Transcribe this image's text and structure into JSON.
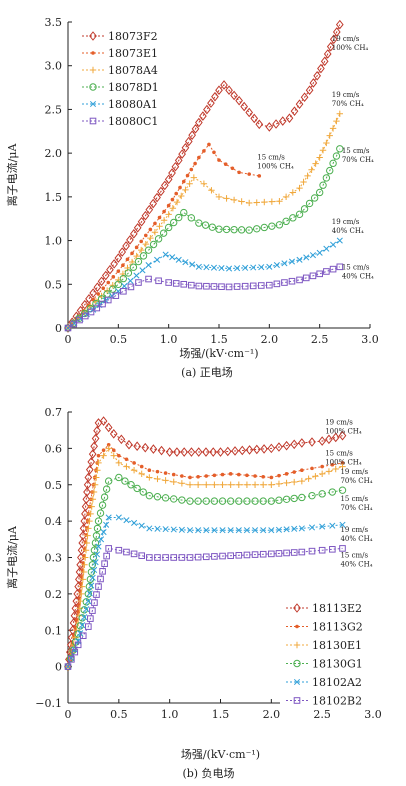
{
  "chart_data": [
    {
      "type": "line",
      "caption": "(a) 正电场",
      "xlabel": "场强/(kV·cm⁻¹)",
      "ylabel": "离子电流/μA",
      "xlim": [
        0,
        3.0
      ],
      "ylim": [
        0,
        3.5
      ],
      "xticks": [
        "0",
        "0.5",
        "1.0",
        "1.5",
        "2.0",
        "2.5",
        "3.0"
      ],
      "yticks": [
        "0",
        "0.5",
        "1.0",
        "1.5",
        "2.0",
        "2.5",
        "3.0",
        "3.5"
      ],
      "legend_position": "top-left",
      "series": [
        {
          "name": "18073F2",
          "color": "#c0392b",
          "marker": "diamond",
          "dash": "2,2",
          "x": [
            0,
            0.5,
            1.0,
            1.3,
            1.5,
            1.55,
            1.7,
            1.9,
            2.0,
            2.2,
            2.4,
            2.55,
            2.7
          ],
          "y": [
            0,
            0.8,
            1.7,
            2.35,
            2.72,
            2.78,
            2.6,
            2.33,
            2.3,
            2.4,
            2.72,
            3.05,
            3.47
          ]
        },
        {
          "name": "18073E1",
          "color": "#e45e2a",
          "marker": "dot",
          "dash": "2,2",
          "x": [
            0,
            0.5,
            1.0,
            1.3,
            1.4,
            1.5,
            1.7,
            1.9
          ],
          "y": [
            0,
            0.65,
            1.4,
            1.95,
            2.1,
            1.92,
            1.78,
            1.74
          ]
        },
        {
          "name": "18078A4",
          "color": "#f0a83c",
          "marker": "plus",
          "dash": "2,2",
          "x": [
            0,
            0.5,
            1.0,
            1.25,
            1.35,
            1.5,
            1.8,
            2.1,
            2.3,
            2.5,
            2.7
          ],
          "y": [
            0,
            0.55,
            1.3,
            1.72,
            1.65,
            1.5,
            1.43,
            1.45,
            1.6,
            1.95,
            2.45
          ]
        },
        {
          "name": "18078D1",
          "color": "#4caf50",
          "marker": "circle",
          "dash": "2,2",
          "x": [
            0,
            0.5,
            1.0,
            1.15,
            1.3,
            1.5,
            1.8,
            2.1,
            2.3,
            2.5,
            2.7
          ],
          "y": [
            0,
            0.5,
            1.15,
            1.32,
            1.2,
            1.13,
            1.12,
            1.18,
            1.3,
            1.55,
            2.05
          ]
        },
        {
          "name": "18080A1",
          "color": "#2f9fd8",
          "marker": "cross",
          "dash": "2,2",
          "x": [
            0,
            0.5,
            0.8,
            0.97,
            1.1,
            1.3,
            1.6,
            2.0,
            2.3,
            2.5,
            2.7
          ],
          "y": [
            0,
            0.42,
            0.72,
            0.84,
            0.78,
            0.7,
            0.68,
            0.7,
            0.78,
            0.86,
            1.0
          ]
        },
        {
          "name": "18080C1",
          "color": "#7e57c2",
          "marker": "square",
          "dash": "2,2",
          "x": [
            0,
            0.4,
            0.7,
            0.8,
            1.0,
            1.3,
            1.6,
            2.0,
            2.3,
            2.5,
            2.7
          ],
          "y": [
            0,
            0.32,
            0.52,
            0.56,
            0.52,
            0.48,
            0.47,
            0.49,
            0.55,
            0.62,
            0.7
          ]
        }
      ],
      "annotations": [
        {
          "lines": [
            "19 cm/s",
            "100% CH₄"
          ],
          "x": 2.62,
          "y": 3.28
        },
        {
          "lines": [
            "15 cm/s",
            "100% CH₄"
          ],
          "x": 1.88,
          "y": 1.93
        },
        {
          "lines": [
            "19 cm/s",
            "70% CH₄"
          ],
          "x": 2.62,
          "y": 2.64
        },
        {
          "lines": [
            "15 cm/s",
            "70% CH₄"
          ],
          "x": 2.72,
          "y": 2.0
        },
        {
          "lines": [
            "19 cm/s",
            "40% CH₄"
          ],
          "x": 2.62,
          "y": 1.19
        },
        {
          "lines": [
            "15 cm/s",
            "40% CH₄"
          ],
          "x": 2.72,
          "y": 0.67
        }
      ]
    },
    {
      "type": "line",
      "caption": "(b) 负电场",
      "xlabel": "场强/(kV·cm⁻¹)",
      "ylabel": "离子电流/μA",
      "xlim": [
        0,
        3.0
      ],
      "ylim": [
        -0.1,
        0.7
      ],
      "xticks": [
        "0",
        "0.5",
        "1.0",
        "1.5",
        "2.0",
        "2.5",
        "3.0"
      ],
      "yticks": [
        "−0.1",
        "0",
        "0.1",
        "0.2",
        "0.3",
        "0.4",
        "0.5",
        "0.6",
        "0.7"
      ],
      "legend_position": "bottom-right",
      "series": [
        {
          "name": "18113E2",
          "color": "#c0392b",
          "marker": "diamond",
          "dash": "2,2",
          "x": [
            0,
            0.1,
            0.2,
            0.3,
            0.35,
            0.45,
            0.6,
            1.0,
            1.5,
            2.0,
            2.3,
            2.5,
            2.7
          ],
          "y": [
            0,
            0.22,
            0.52,
            0.67,
            0.675,
            0.64,
            0.61,
            0.59,
            0.59,
            0.6,
            0.615,
            0.62,
            0.635
          ]
        },
        {
          "name": "18113G2",
          "color": "#e45e2a",
          "marker": "dot",
          "dash": "2,2",
          "x": [
            0,
            0.1,
            0.2,
            0.3,
            0.4,
            0.5,
            0.8,
            1.2,
            1.6,
            2.0,
            2.3,
            2.5,
            2.7
          ],
          "y": [
            0,
            0.15,
            0.42,
            0.58,
            0.61,
            0.58,
            0.54,
            0.52,
            0.53,
            0.52,
            0.54,
            0.55,
            0.56
          ]
        },
        {
          "name": "18130E1",
          "color": "#f0a83c",
          "marker": "plus",
          "dash": "2,2",
          "x": [
            0,
            0.1,
            0.2,
            0.3,
            0.4,
            0.5,
            0.8,
            1.2,
            1.6,
            2.0,
            2.3,
            2.5,
            2.7
          ],
          "y": [
            0,
            0.12,
            0.38,
            0.56,
            0.6,
            0.56,
            0.52,
            0.5,
            0.5,
            0.5,
            0.51,
            0.53,
            0.55
          ]
        },
        {
          "name": "18130G1",
          "color": "#4caf50",
          "marker": "circle",
          "dash": "2,2",
          "x": [
            0,
            0.1,
            0.2,
            0.3,
            0.4,
            0.5,
            0.8,
            1.2,
            1.6,
            2.0,
            2.3,
            2.5,
            2.7
          ],
          "y": [
            0,
            0.09,
            0.2,
            0.4,
            0.51,
            0.52,
            0.47,
            0.455,
            0.455,
            0.455,
            0.465,
            0.475,
            0.485
          ]
        },
        {
          "name": "18102A2",
          "color": "#2f9fd8",
          "marker": "cross",
          "dash": "2,2",
          "x": [
            0,
            0.1,
            0.2,
            0.3,
            0.4,
            0.5,
            0.8,
            1.2,
            1.6,
            2.0,
            2.3,
            2.5,
            2.7
          ],
          "y": [
            0,
            0.07,
            0.18,
            0.33,
            0.41,
            0.41,
            0.38,
            0.375,
            0.375,
            0.375,
            0.38,
            0.385,
            0.39
          ]
        },
        {
          "name": "18102B2",
          "color": "#7e57c2",
          "marker": "square",
          "dash": "2,2",
          "x": [
            0,
            0.1,
            0.2,
            0.3,
            0.4,
            0.5,
            0.8,
            1.2,
            1.6,
            2.0,
            2.3,
            2.5,
            2.7
          ],
          "y": [
            0,
            0.06,
            0.11,
            0.22,
            0.325,
            0.32,
            0.3,
            0.3,
            0.305,
            0.31,
            0.315,
            0.32,
            0.325
          ]
        }
      ],
      "annotations": [
        {
          "lines": [
            "19 cm/s",
            "100% CH₄"
          ],
          "x": 2.53,
          "y": 0.665
        },
        {
          "lines": [
            "15 cm/s",
            "100% CH₄"
          ],
          "x": 2.53,
          "y": 0.58
        },
        {
          "lines": [
            "19 cm/s",
            "70% CH₄"
          ],
          "x": 2.68,
          "y": 0.53
        },
        {
          "lines": [
            "15 cm/s",
            "70% CH₄"
          ],
          "x": 2.68,
          "y": 0.455
        },
        {
          "lines": [
            "19 cm/s",
            "40% CH₄"
          ],
          "x": 2.68,
          "y": 0.37
        },
        {
          "lines": [
            "15 cm/s",
            "40% CH₄"
          ],
          "x": 2.68,
          "y": 0.3
        }
      ]
    }
  ]
}
